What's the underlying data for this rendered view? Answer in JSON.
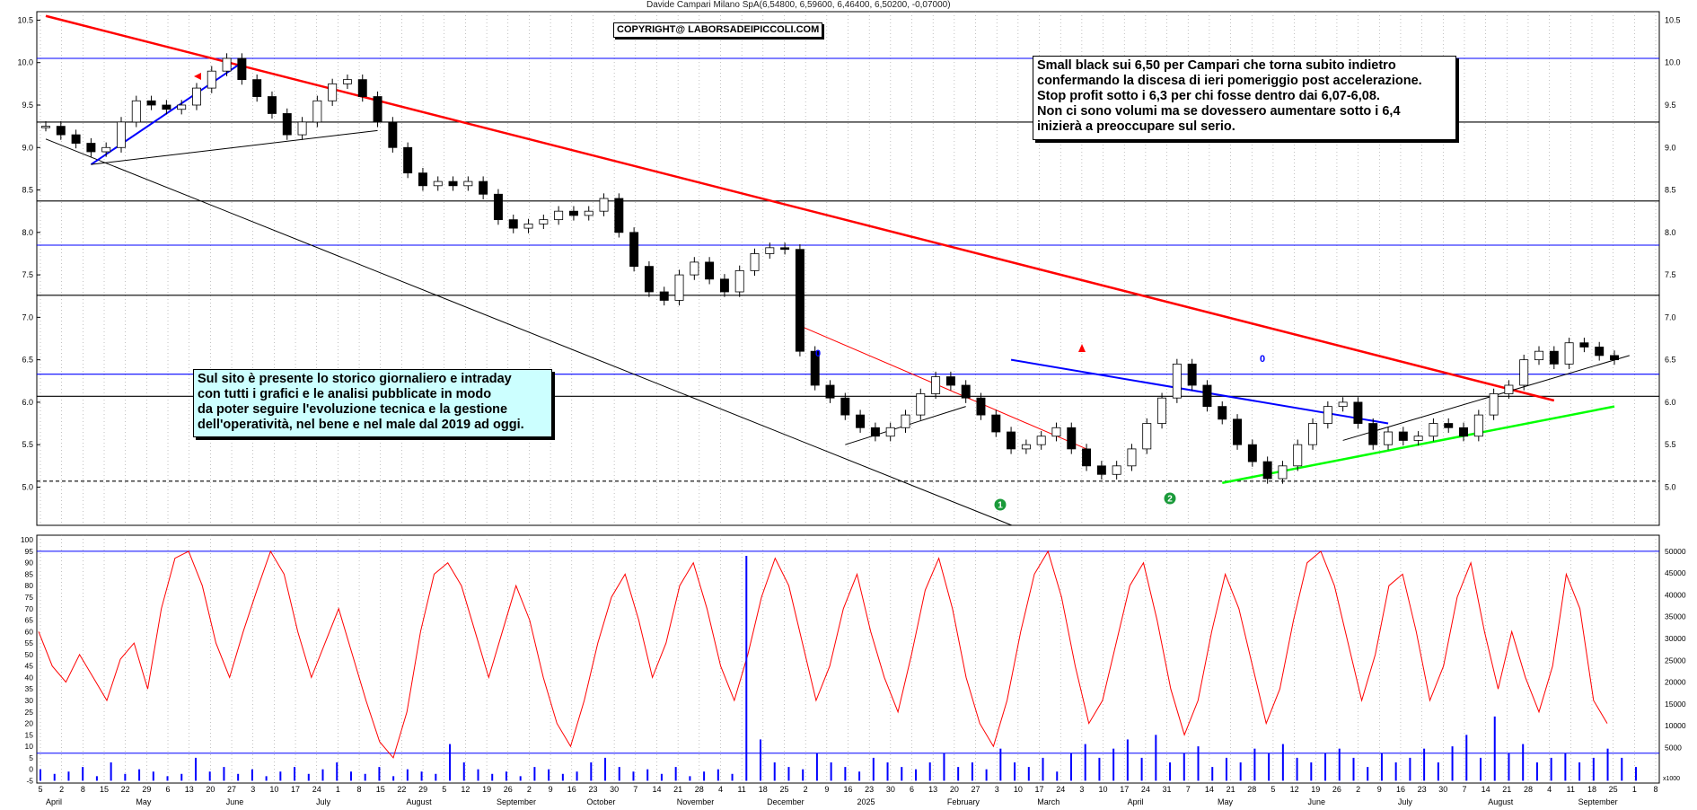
{
  "header": {
    "title": "Davide Campari Milano SpA(6,54800, 6,59600, 6,46400, 6,50200, -0,07000)",
    "copyright": "COPYRIGHT@ LABORSADEIPICCOLI.COM"
  },
  "notes": {
    "black": "Small black sui 6,50 per Campari che torna subito indietro\nconfermando la discesa di ieri pomeriggio post accelerazione.\nStop profit sotto i 6,3 per chi fosse dentro dai 6,07-6,08.\nNon ci sono volumi ma se dovessero aumentare sotto i 6,4\ninizierà a preoccupare sul serio.",
    "cyan": "Sul sito è presente lo storico giornaliero e intraday\ncon tutti i grafici e le analisi pubblicate in modo\nda poter seguire l'evoluzione tecnica e la gestione\ndell'operatività, nel bene e nel male dal 2019 ad oggi."
  },
  "markers": {
    "circle1": "1",
    "circle2": "2",
    "zero_a": "0",
    "zero_b": "0"
  },
  "colors": {
    "red_trend": "#ff0000",
    "blue": "#0000ff",
    "green": "#00ff00",
    "oscillator": "#ff0000",
    "volume": "#0000ff"
  },
  "chart_data": [
    {
      "type": "candlestick",
      "ylim": [
        4.55,
        10.6
      ],
      "yticks": [
        "10.5",
        "10.0",
        "9.5",
        "9.0",
        "8.5",
        "8.0",
        "7.5",
        "7.0",
        "6.5",
        "6.0",
        "5.5",
        "5.0"
      ],
      "xlabels": [
        "5",
        "2",
        "8",
        "15",
        "22",
        "29",
        "6",
        "13",
        "20",
        "27",
        "3",
        "10",
        "17",
        "24",
        "1",
        "8",
        "15",
        "22",
        "29",
        "5",
        "12",
        "19",
        "26",
        "2",
        "9",
        "16",
        "23",
        "30",
        "7",
        "14",
        "21",
        "28",
        "4",
        "11",
        "18",
        "25",
        "2",
        "9",
        "16",
        "23",
        "30",
        "6",
        "13",
        "20",
        "27",
        "3",
        "10",
        "17",
        "24",
        "3",
        "10",
        "17",
        "24",
        "31",
        "7",
        "14",
        "21",
        "28",
        "5",
        "12",
        "19",
        "26",
        "2",
        "9",
        "16",
        "23",
        "30",
        "7",
        "14",
        "21",
        "28",
        "4",
        "11",
        "18",
        "25",
        "1",
        "8"
      ],
      "months": [
        "April",
        "May",
        "June",
        "July",
        "August",
        "September",
        "October",
        "November",
        "December",
        "2025",
        "February",
        "March",
        "April",
        "May",
        "June",
        "July",
        "August",
        "September"
      ],
      "close_values": [
        9.25,
        9.15,
        9.05,
        8.95,
        9.0,
        9.3,
        9.55,
        9.5,
        9.45,
        9.5,
        9.7,
        9.9,
        10.05,
        9.8,
        9.6,
        9.4,
        9.15,
        9.3,
        9.55,
        9.75,
        9.8,
        9.6,
        9.3,
        9.0,
        8.7,
        8.55,
        8.6,
        8.55,
        8.6,
        8.45,
        8.15,
        8.05,
        8.1,
        8.15,
        8.25,
        8.2,
        8.25,
        8.4,
        8.0,
        7.6,
        7.3,
        7.2,
        7.5,
        7.65,
        7.45,
        7.3,
        7.55,
        7.75,
        7.82,
        7.8,
        6.6,
        6.2,
        6.05,
        5.85,
        5.7,
        5.6,
        5.7,
        5.85,
        6.1,
        6.3,
        6.2,
        6.05,
        5.85,
        5.65,
        5.45,
        5.5,
        5.6,
        5.7,
        5.45,
        5.25,
        5.15,
        5.25,
        5.45,
        5.75,
        6.05,
        6.45,
        6.2,
        5.95,
        5.8,
        5.5,
        5.3,
        5.1,
        5.25,
        5.5,
        5.75,
        5.95,
        6.0,
        5.75,
        5.5,
        5.65,
        5.55,
        5.6,
        5.75,
        5.7,
        5.6,
        5.85,
        6.1,
        6.2,
        6.5,
        6.6,
        6.45,
        6.7,
        6.65,
        6.55,
        6.5
      ],
      "hlines": [
        {
          "value": 10.05,
          "color": "#0000ff"
        },
        {
          "value": 9.3,
          "color": "#000000"
        },
        {
          "value": 8.37,
          "color": "#000000"
        },
        {
          "value": 7.85,
          "color": "#0000ff"
        },
        {
          "value": 7.26,
          "color": "#000000"
        },
        {
          "value": 6.33,
          "color": "#0000ff"
        },
        {
          "value": 6.07,
          "color": "#000000"
        },
        {
          "value": 5.07,
          "color": "#000000"
        }
      ]
    },
    {
      "type": "line",
      "name": "oscillator",
      "yticks_left": [
        "100",
        "95",
        "90",
        "85",
        "80",
        "75",
        "70",
        "65",
        "60",
        "55",
        "50",
        "45",
        "40",
        "35",
        "30",
        "25",
        "20",
        "15",
        "10",
        "5",
        "0",
        "-5"
      ],
      "yticks_right": [
        "50000",
        "45000",
        "40000",
        "35000",
        "30000",
        "25000",
        "20000",
        "15000",
        "10000",
        "5000"
      ],
      "right_unit": "x1000",
      "hlines": [
        95,
        7
      ],
      "values": [
        60,
        45,
        38,
        50,
        40,
        30,
        48,
        55,
        35,
        70,
        92,
        95,
        80,
        55,
        40,
        60,
        78,
        95,
        85,
        60,
        40,
        55,
        70,
        50,
        30,
        12,
        5,
        25,
        60,
        85,
        90,
        80,
        60,
        40,
        60,
        80,
        65,
        40,
        20,
        10,
        30,
        55,
        75,
        85,
        65,
        40,
        55,
        80,
        90,
        70,
        45,
        30,
        50,
        75,
        92,
        80,
        55,
        30,
        45,
        70,
        85,
        60,
        40,
        25,
        50,
        78,
        92,
        70,
        40,
        20,
        10,
        30,
        60,
        85,
        95,
        75,
        45,
        20,
        30,
        55,
        80,
        90,
        65,
        35,
        15,
        30,
        60,
        85,
        70,
        45,
        20,
        35,
        65,
        90,
        95,
        80,
        55,
        30,
        50,
        80,
        85,
        60,
        30,
        45,
        75,
        90,
        60,
        35,
        60,
        40,
        25,
        45,
        85,
        70,
        30,
        20
      ]
    },
    {
      "type": "bar",
      "name": "volume",
      "values": [
        5,
        3,
        4,
        6,
        2,
        8,
        3,
        5,
        4,
        2,
        3,
        10,
        4,
        6,
        3,
        5,
        2,
        4,
        6,
        3,
        5,
        8,
        4,
        3,
        6,
        2,
        5,
        4,
        3,
        16,
        8,
        5,
        3,
        4,
        2,
        6,
        5,
        3,
        4,
        8,
        10,
        6,
        4,
        5,
        3,
        6,
        2,
        4,
        5,
        3,
        98,
        18,
        8,
        6,
        5,
        12,
        8,
        6,
        4,
        10,
        8,
        6,
        5,
        8,
        12,
        6,
        8,
        5,
        14,
        8,
        6,
        10,
        4,
        12,
        16,
        10,
        14,
        18,
        10,
        20,
        8,
        12,
        15,
        6,
        10,
        8,
        14,
        12,
        16,
        10,
        8,
        12,
        14,
        10,
        6,
        12,
        8,
        10,
        14,
        8,
        15,
        20,
        10,
        28,
        12,
        16,
        8,
        10,
        12,
        8,
        10,
        14,
        10,
        6
      ]
    }
  ]
}
